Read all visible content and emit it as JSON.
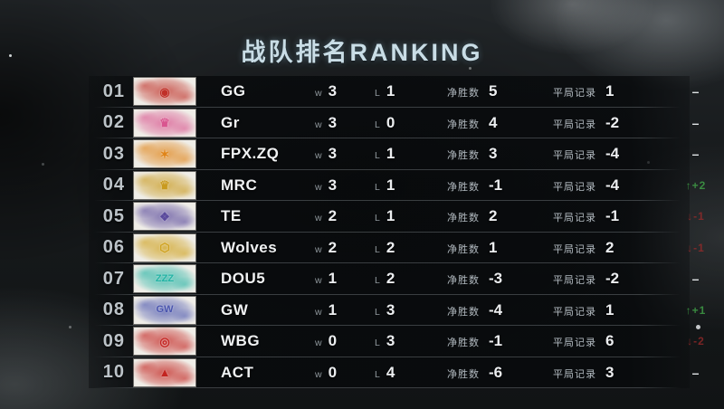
{
  "title": "战队排名RANKING",
  "table": {
    "labels": {
      "win": "w",
      "loss": "L",
      "net": "净胜数",
      "draw": "平局记录"
    },
    "rows": [
      {
        "rank": "01",
        "team": "GG",
        "win": "3",
        "loss": "1",
        "net": "5",
        "draw": "1",
        "change": "–",
        "change_type": "none",
        "logo": {
          "icon": "gg-circle-emblem-logo",
          "glyph": "◉",
          "color": "#c03028"
        }
      },
      {
        "rank": "02",
        "team": "Gr",
        "win": "3",
        "loss": "0",
        "net": "4",
        "draw": "-2",
        "change": "–",
        "change_type": "none",
        "logo": {
          "icon": "gr-crown-logo",
          "glyph": "♛",
          "color": "#d9558f"
        }
      },
      {
        "rank": "03",
        "team": "FPX.ZQ",
        "win": "3",
        "loss": "1",
        "net": "3",
        "draw": "-4",
        "change": "–",
        "change_type": "none",
        "logo": {
          "icon": "fpx-phoenix-logo",
          "glyph": "✶",
          "color": "#e08418"
        }
      },
      {
        "rank": "04",
        "team": "MRC",
        "win": "3",
        "loss": "1",
        "net": "-1",
        "draw": "-4",
        "change": "↑+2",
        "change_type": "up",
        "logo": {
          "icon": "mrc-crown-logo",
          "glyph": "♛",
          "color": "#c99a1f"
        }
      },
      {
        "rank": "05",
        "team": "TE",
        "win": "2",
        "loss": "1",
        "net": "2",
        "draw": "-1",
        "change": "↓-1",
        "change_type": "down",
        "logo": {
          "icon": "te-ink-characters-logo",
          "glyph": "❖",
          "color": "#5a4a9c"
        }
      },
      {
        "rank": "06",
        "team": "Wolves",
        "win": "2",
        "loss": "2",
        "net": "1",
        "draw": "2",
        "change": "↓-1",
        "change_type": "down",
        "logo": {
          "icon": "wolves-hexagon-logo",
          "glyph": "⬡",
          "color": "#cfa11c"
        }
      },
      {
        "rank": "07",
        "team": "DOU5",
        "win": "1",
        "loss": "2",
        "net": "-3",
        "draw": "-2",
        "change": "–",
        "change_type": "none",
        "logo": {
          "icon": "dou5-zzz-box-logo",
          "glyph": "ZZZ",
          "color": "#23b3a4"
        }
      },
      {
        "rank": "08",
        "team": "GW",
        "win": "1",
        "loss": "3",
        "net": "-4",
        "draw": "1",
        "change": "↑+1",
        "change_type": "up",
        "logo": {
          "icon": "gw-wings-logo",
          "glyph": "GW",
          "color": "#4a55ae"
        }
      },
      {
        "rank": "09",
        "team": "WBG",
        "win": "0",
        "loss": "3",
        "net": "-1",
        "draw": "6",
        "change": "↓-2",
        "change_type": "down",
        "logo": {
          "icon": "wbg-weibo-eye-logo",
          "glyph": "◎",
          "color": "#c42522"
        }
      },
      {
        "rank": "10",
        "team": "ACT",
        "win": "0",
        "loss": "4",
        "net": "-6",
        "draw": "3",
        "change": "–",
        "change_type": "none",
        "logo": {
          "icon": "act-triangle-logo",
          "glyph": "▲",
          "color": "#c32420"
        }
      }
    ]
  },
  "colors": {
    "up": "#3f9e46",
    "down": "#9e2a2a",
    "title": "#c9dde6"
  }
}
